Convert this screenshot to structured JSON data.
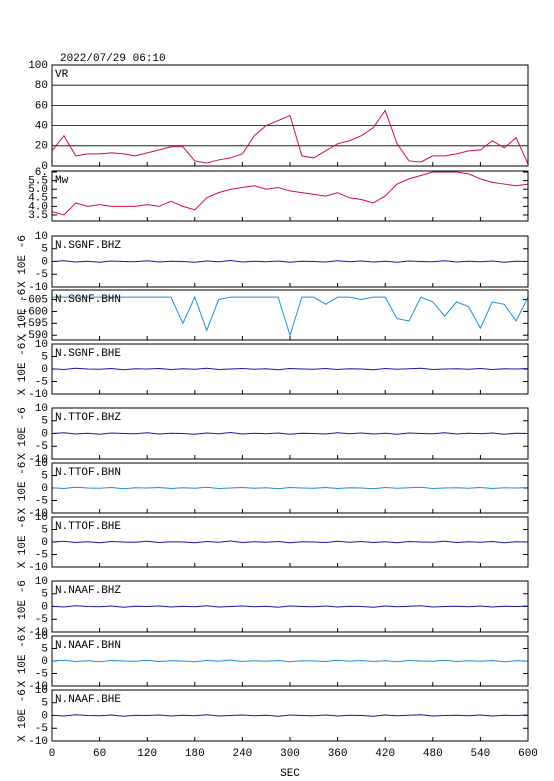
{
  "title": "2022/07/29 06:10",
  "x_axis": {
    "label": "SEC",
    "xlim": [
      0,
      600
    ],
    "xticks": [
      0,
      60,
      120,
      180,
      240,
      300,
      360,
      420,
      480,
      540,
      600
    ]
  },
  "chart_data": [
    {
      "type": "line",
      "label": "VR",
      "color": "#d0103a",
      "grid": true,
      "ylim": [
        0,
        100
      ],
      "yticks": [
        0,
        20,
        40,
        60,
        80,
        100
      ],
      "x": [
        0,
        15,
        30,
        45,
        60,
        75,
        90,
        105,
        120,
        135,
        150,
        165,
        180,
        195,
        210,
        225,
        240,
        255,
        270,
        285,
        300,
        315,
        330,
        345,
        360,
        375,
        390,
        405,
        420,
        435,
        450,
        465,
        480,
        495,
        510,
        525,
        540,
        555,
        570,
        585,
        600
      ],
      "values": [
        15,
        30,
        10,
        12,
        12,
        13,
        12,
        10,
        13,
        16,
        19,
        19,
        5,
        3,
        6,
        8,
        12,
        30,
        40,
        45,
        50,
        10,
        8,
        15,
        22,
        25,
        30,
        38,
        55,
        22,
        5,
        4,
        10,
        10,
        12,
        15,
        16,
        25,
        18,
        28,
        2
      ]
    },
    {
      "type": "line",
      "label": "Mw",
      "color": "#d0103a",
      "grid": false,
      "ylim": [
        3.15,
        6.06
      ],
      "yticks": [
        3.5,
        {
          "value": 4,
          "label": "4.0"
        },
        4.5,
        {
          "value": 5,
          "label": "5.0"
        },
        5.5,
        {
          "value": 6,
          "label": "6."
        }
      ],
      "x": [
        0,
        15,
        30,
        45,
        60,
        75,
        90,
        105,
        120,
        135,
        150,
        165,
        180,
        195,
        210,
        225,
        240,
        255,
        270,
        285,
        300,
        315,
        330,
        345,
        360,
        375,
        390,
        405,
        420,
        435,
        450,
        465,
        480,
        495,
        510,
        525,
        540,
        555,
        570,
        585,
        600
      ],
      "values": [
        3.7,
        3.5,
        4.2,
        4.0,
        4.1,
        4.0,
        4.0,
        4.0,
        4.1,
        4.0,
        4.3,
        4.0,
        3.8,
        4.5,
        4.8,
        5.0,
        5.1,
        5.2,
        5.0,
        5.1,
        4.9,
        4.8,
        4.7,
        4.6,
        4.8,
        4.5,
        4.4,
        4.2,
        4.6,
        5.3,
        5.6,
        5.8,
        6.0,
        6.0,
        6.0,
        5.9,
        5.6,
        5.4,
        5.3,
        5.2,
        5.3
      ]
    },
    {
      "type": "line",
      "label": "N.SGNF.BHZ",
      "ylabel": "X 10E -6",
      "color": "#1a1aa0",
      "ylim": [
        -10,
        10
      ],
      "yticks": [
        -10,
        -5,
        0,
        5,
        10
      ],
      "x": [
        0,
        15,
        30,
        45,
        60,
        75,
        90,
        105,
        120,
        135,
        150,
        165,
        180,
        195,
        210,
        225,
        240,
        255,
        270,
        285,
        300,
        315,
        330,
        345,
        360,
        375,
        390,
        405,
        420,
        435,
        450,
        465,
        480,
        495,
        510,
        525,
        540,
        555,
        570,
        585,
        600
      ],
      "values": [
        0,
        0.3,
        -0.2,
        0.1,
        -0.3,
        0.2,
        0,
        -0.1,
        0.3,
        -0.2,
        0.1,
        0,
        -0.3,
        0.2,
        -0.1,
        0.4,
        -0.2,
        0.1,
        -0.1,
        0.2,
        -0.3,
        0.1,
        0,
        -0.2,
        0.3,
        -0.1,
        0.2,
        -0.2,
        0.1,
        -0.3,
        0.2,
        0,
        -0.1,
        0.3,
        -0.2,
        0.1,
        -0.1,
        0.2,
        -0.3,
        0.1,
        0
      ]
    },
    {
      "type": "line",
      "label": "N.SGNF.BHN",
      "ylabel": "X 10E -6",
      "color": "#1e8fd8",
      "ylim": [
        -588,
        -609
      ],
      "yticks": [
        -605,
        -600,
        -595,
        -590
      ],
      "x": [
        0,
        15,
        30,
        45,
        60,
        75,
        90,
        105,
        120,
        135,
        150,
        165,
        180,
        195,
        210,
        225,
        240,
        255,
        270,
        285,
        300,
        315,
        330,
        345,
        360,
        375,
        390,
        405,
        420,
        435,
        450,
        465,
        480,
        495,
        510,
        525,
        540,
        555,
        570,
        585,
        600
      ],
      "values": [
        -606,
        -606,
        -606,
        -606,
        -606,
        -606,
        -606,
        -606,
        -606,
        -606,
        -606,
        -595,
        -606,
        -592,
        -605,
        -606,
        -606,
        -606,
        -606,
        -606,
        -590,
        -606,
        -606,
        -603,
        -606,
        -606,
        -605,
        -606,
        -606,
        -597,
        -596,
        -606,
        -604,
        -598,
        -604,
        -602,
        -593,
        -604,
        -603,
        -596,
        -606
      ]
    },
    {
      "type": "line",
      "label": "N.SGNF.BHE",
      "ylabel": "X 10E -6",
      "color": "#1a1aa0",
      "ylim": [
        -10,
        10
      ],
      "yticks": [
        -10,
        -5,
        0,
        5,
        10
      ],
      "x": [
        0,
        15,
        30,
        45,
        60,
        75,
        90,
        105,
        120,
        135,
        150,
        165,
        180,
        195,
        210,
        225,
        240,
        255,
        270,
        285,
        300,
        315,
        330,
        345,
        360,
        375,
        390,
        405,
        420,
        435,
        450,
        465,
        480,
        495,
        510,
        525,
        540,
        555,
        570,
        585,
        600
      ],
      "values": [
        0.1,
        -0.2,
        0.3,
        0,
        -0.1,
        0.2,
        -0.3,
        0.1,
        0,
        0.2,
        -0.2,
        0.1,
        -0.1,
        0.3,
        -0.2,
        0,
        0.2,
        -0.1,
        0.1,
        -0.3,
        0.2,
        0,
        -0.1,
        0.2,
        -0.2,
        0.1,
        0,
        -0.3,
        0.2,
        -0.1,
        0.1,
        0.3,
        -0.2,
        0,
        0.1,
        -0.1,
        0.2,
        -0.2,
        0.1,
        0,
        0.2
      ]
    },
    {
      "type": "line",
      "label": "N.TTOF.BHZ",
      "ylabel": "X 10E -6",
      "color": "#1a1aa0",
      "ylim": [
        -10,
        10
      ],
      "yticks": [
        -10,
        -5,
        0,
        5,
        10
      ],
      "x": [
        0,
        15,
        30,
        45,
        60,
        75,
        90,
        105,
        120,
        135,
        150,
        165,
        180,
        195,
        210,
        225,
        240,
        255,
        270,
        285,
        300,
        315,
        330,
        345,
        360,
        375,
        390,
        405,
        420,
        435,
        450,
        465,
        480,
        495,
        510,
        525,
        540,
        555,
        570,
        585,
        600
      ],
      "values": [
        0,
        0.3,
        -0.2,
        0.1,
        -0.3,
        0.2,
        0,
        -0.1,
        0.3,
        -0.2,
        0.1,
        0,
        -0.3,
        0.2,
        -0.1,
        0.4,
        -0.2,
        0.1,
        -0.1,
        0.2,
        -0.3,
        0.1,
        0,
        -0.2,
        0.3,
        -0.1,
        0.2,
        -0.2,
        0.1,
        -0.3,
        0.2,
        0,
        -0.1,
        0.3,
        -0.2,
        0.1,
        -0.1,
        0.2,
        -0.3,
        0.1,
        0
      ]
    },
    {
      "type": "line",
      "label": "N.TTOF.BHN",
      "ylabel": "X 10E -6",
      "color": "#1e8fd8",
      "ylim": [
        -10,
        10
      ],
      "yticks": [
        -10,
        -5,
        0,
        5,
        10
      ],
      "x": [
        0,
        15,
        30,
        45,
        60,
        75,
        90,
        105,
        120,
        135,
        150,
        165,
        180,
        195,
        210,
        225,
        240,
        255,
        270,
        285,
        300,
        315,
        330,
        345,
        360,
        375,
        390,
        405,
        420,
        435,
        450,
        465,
        480,
        495,
        510,
        525,
        540,
        555,
        570,
        585,
        600
      ],
      "values": [
        0.1,
        -0.2,
        0.3,
        0,
        -0.1,
        0.2,
        -0.3,
        0.1,
        0,
        0.2,
        -0.2,
        0.1,
        -0.1,
        0.3,
        -0.2,
        0,
        0.2,
        -0.1,
        0.1,
        -0.3,
        0.2,
        0,
        -0.1,
        0.2,
        -0.2,
        0.1,
        0,
        -0.3,
        0.2,
        -0.1,
        0.1,
        0.3,
        -0.2,
        0,
        0.1,
        -0.1,
        0.2,
        -0.2,
        0.1,
        0,
        0.2
      ]
    },
    {
      "type": "line",
      "label": "N.TTOF.BHE",
      "ylabel": "X 10E -6",
      "color": "#1a1aa0",
      "ylim": [
        -10,
        10
      ],
      "yticks": [
        -10,
        -5,
        0,
        5,
        10
      ],
      "x": [
        0,
        15,
        30,
        45,
        60,
        75,
        90,
        105,
        120,
        135,
        150,
        165,
        180,
        195,
        210,
        225,
        240,
        255,
        270,
        285,
        300,
        315,
        330,
        345,
        360,
        375,
        390,
        405,
        420,
        435,
        450,
        465,
        480,
        495,
        510,
        525,
        540,
        555,
        570,
        585,
        600
      ],
      "values": [
        0,
        0.3,
        -0.2,
        0.1,
        -0.3,
        0.2,
        0,
        -0.1,
        0.3,
        -0.2,
        0.1,
        0,
        -0.3,
        0.2,
        -0.1,
        0.4,
        -0.2,
        0.1,
        -0.1,
        0.2,
        -0.3,
        0.1,
        0,
        -0.2,
        0.3,
        -0.1,
        0.2,
        -0.2,
        0.1,
        -0.3,
        0.2,
        0,
        -0.1,
        0.3,
        -0.2,
        0.1,
        -0.1,
        0.2,
        -0.3,
        0.1,
        0
      ]
    },
    {
      "type": "line",
      "label": "N.NAAF.BHZ",
      "ylabel": "X 10E -6",
      "color": "#1a1aa0",
      "ylim": [
        -10,
        10
      ],
      "yticks": [
        -10,
        -5,
        0,
        5,
        10
      ],
      "x": [
        0,
        15,
        30,
        45,
        60,
        75,
        90,
        105,
        120,
        135,
        150,
        165,
        180,
        195,
        210,
        225,
        240,
        255,
        270,
        285,
        300,
        315,
        330,
        345,
        360,
        375,
        390,
        405,
        420,
        435,
        450,
        465,
        480,
        495,
        510,
        525,
        540,
        555,
        570,
        585,
        600
      ],
      "values": [
        0.1,
        -0.2,
        0.3,
        0,
        -0.1,
        0.2,
        -0.3,
        0.1,
        0,
        0.2,
        -0.2,
        0.1,
        -0.1,
        0.3,
        -0.2,
        0,
        0.2,
        -0.1,
        0.1,
        -0.3,
        0.2,
        0,
        -0.1,
        0.2,
        -0.2,
        0.1,
        0,
        -0.3,
        0.2,
        -0.1,
        0.1,
        0.3,
        -0.2,
        0,
        0.1,
        -0.1,
        0.2,
        -0.2,
        0.1,
        0,
        0.2
      ]
    },
    {
      "type": "line",
      "label": "N.NAAF.BHN",
      "ylabel": "X 10E -6",
      "color": "#1e8fd8",
      "ylim": [
        -10,
        10
      ],
      "yticks": [
        -10,
        -5,
        0,
        5,
        10
      ],
      "x": [
        0,
        15,
        30,
        45,
        60,
        75,
        90,
        105,
        120,
        135,
        150,
        165,
        180,
        195,
        210,
        225,
        240,
        255,
        270,
        285,
        300,
        315,
        330,
        345,
        360,
        375,
        390,
        405,
        420,
        435,
        450,
        465,
        480,
        495,
        510,
        525,
        540,
        555,
        570,
        585,
        600
      ],
      "values": [
        0,
        0.3,
        -0.2,
        0.1,
        -0.3,
        0.2,
        0,
        -0.1,
        0.3,
        -0.2,
        0.1,
        0,
        -0.3,
        0.2,
        -0.1,
        0.4,
        -0.2,
        0.1,
        -0.1,
        0.2,
        -0.3,
        0.1,
        0,
        -0.2,
        0.3,
        -0.1,
        0.2,
        -0.2,
        0.1,
        -0.3,
        0.2,
        0,
        -0.1,
        0.3,
        -0.2,
        0.1,
        -0.1,
        0.2,
        -0.3,
        0.1,
        0
      ]
    },
    {
      "type": "line",
      "label": "N.NAAF.BHE",
      "ylabel": "X 10E -6",
      "color": "#1a1aa0",
      "ylim": [
        -10,
        10
      ],
      "yticks": [
        -10,
        -5,
        0,
        5,
        10
      ],
      "x": [
        0,
        15,
        30,
        45,
        60,
        75,
        90,
        105,
        120,
        135,
        150,
        165,
        180,
        195,
        210,
        225,
        240,
        255,
        270,
        285,
        300,
        315,
        330,
        345,
        360,
        375,
        390,
        405,
        420,
        435,
        450,
        465,
        480,
        495,
        510,
        525,
        540,
        555,
        570,
        585,
        600
      ],
      "values": [
        0.1,
        -0.2,
        0.3,
        0,
        -0.1,
        0.2,
        -0.3,
        0.1,
        0,
        0.2,
        -0.2,
        0.1,
        -0.1,
        0.3,
        -0.2,
        0,
        0.2,
        -0.1,
        0.1,
        -0.3,
        0.2,
        0,
        -0.1,
        0.2,
        -0.2,
        0.1,
        0,
        -0.3,
        0.2,
        -0.1,
        0.1,
        0.3,
        -0.2,
        0,
        0.1,
        -0.1,
        0.2,
        -0.2,
        0.1,
        0,
        0.2
      ]
    }
  ]
}
